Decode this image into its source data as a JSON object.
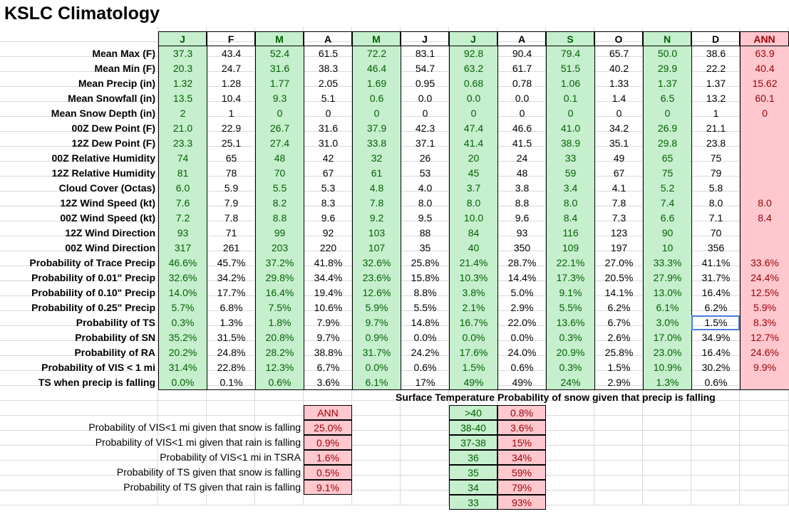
{
  "title": "KSLC Climatology",
  "months": [
    "J",
    "F",
    "M",
    "A",
    "M",
    "J",
    "J",
    "A",
    "S",
    "O",
    "N",
    "D"
  ],
  "annual_label": "ANN",
  "rows": [
    {
      "label": "Mean Max (F)",
      "values": [
        "37.3",
        "43.4",
        "52.4",
        "61.5",
        "72.2",
        "83.1",
        "92.8",
        "90.4",
        "79.4",
        "65.7",
        "50.0",
        "38.6"
      ],
      "ann": "63.9"
    },
    {
      "label": "Mean Min (F)",
      "values": [
        "20.3",
        "24.7",
        "31.6",
        "38.3",
        "46.4",
        "54.7",
        "63.2",
        "61.7",
        "51.5",
        "40.2",
        "29.9",
        "22.2"
      ],
      "ann": "40.4"
    },
    {
      "label": "Mean Precip (in)",
      "values": [
        "1.32",
        "1.28",
        "1.77",
        "2.05",
        "1.69",
        "0.95",
        "0.68",
        "0.78",
        "1.06",
        "1.33",
        "1.37",
        "1.37"
      ],
      "ann": "15.62"
    },
    {
      "label": "Mean Snowfall (in)",
      "values": [
        "13.5",
        "10.4",
        "9.3",
        "5.1",
        "0.6",
        "0.0",
        "0.0",
        "0.0",
        "0.1",
        "1.4",
        "6.5",
        "13.2"
      ],
      "ann": "60.1"
    },
    {
      "label": "Mean Snow Depth (in)",
      "values": [
        "2",
        "1",
        "0",
        "0",
        "0",
        "0",
        "0",
        "0",
        "0",
        "0",
        "0",
        "1"
      ],
      "ann": "0"
    },
    {
      "label": "00Z Dew Point (F)",
      "values": [
        "21.0",
        "22.9",
        "26.7",
        "31.6",
        "37.9",
        "42.3",
        "47.4",
        "46.6",
        "41.0",
        "34.2",
        "26.9",
        "21.1"
      ],
      "ann": ""
    },
    {
      "label": "12Z Dew Point (F)",
      "values": [
        "23.3",
        "25.1",
        "27.4",
        "31.0",
        "33.8",
        "37.1",
        "41.4",
        "41.5",
        "38.9",
        "35.1",
        "29.8",
        "23.8"
      ],
      "ann": ""
    },
    {
      "label": "00Z Relative Humidity",
      "values": [
        "74",
        "65",
        "48",
        "42",
        "32",
        "26",
        "20",
        "24",
        "33",
        "49",
        "65",
        "75"
      ],
      "ann": ""
    },
    {
      "label": "12Z Relative Humidity",
      "values": [
        "81",
        "78",
        "70",
        "67",
        "61",
        "53",
        "45",
        "48",
        "59",
        "67",
        "75",
        "79"
      ],
      "ann": ""
    },
    {
      "label": "Cloud Cover (Octas)",
      "values": [
        "6.0",
        "5.9",
        "5.5",
        "5.3",
        "4.8",
        "4.0",
        "3.7",
        "3.8",
        "3.4",
        "4.1",
        "5.2",
        "5.8"
      ],
      "ann": ""
    },
    {
      "label": "12Z Wind Speed (kt)",
      "values": [
        "7.6",
        "7.9",
        "8.2",
        "8.3",
        "7.8",
        "8.0",
        "8.0",
        "8.8",
        "8.0",
        "7.8",
        "7.4",
        "8.0"
      ],
      "ann": "8.0"
    },
    {
      "label": "00Z Wind Speed (kt)",
      "values": [
        "7.2",
        "7.8",
        "8.8",
        "9.6",
        "9.2",
        "9.5",
        "10.0",
        "9.6",
        "8.4",
        "7.3",
        "6.6",
        "7.1"
      ],
      "ann": "8.4"
    },
    {
      "label": "12Z Wind Direction",
      "values": [
        "93",
        "71",
        "99",
        "92",
        "103",
        "88",
        "84",
        "93",
        "116",
        "123",
        "90",
        "70"
      ],
      "ann": ""
    },
    {
      "label": "00Z Wind Direction",
      "values": [
        "317",
        "261",
        "203",
        "220",
        "107",
        "35",
        "40",
        "350",
        "109",
        "197",
        "10",
        "356"
      ],
      "ann": ""
    },
    {
      "label": "Probability of Trace Precip",
      "values": [
        "46.6%",
        "45.7%",
        "37.2%",
        "41.8%",
        "32.6%",
        "25.8%",
        "21.4%",
        "28.7%",
        "22.1%",
        "27.0%",
        "33.3%",
        "41.1%"
      ],
      "ann": "33.6%"
    },
    {
      "label": "Probability of 0.01\" Precip",
      "values": [
        "32.6%",
        "34.2%",
        "29.8%",
        "34.4%",
        "23.6%",
        "15.8%",
        "10.3%",
        "14.4%",
        "17.3%",
        "20.5%",
        "27.9%",
        "31.7%"
      ],
      "ann": "24.4%"
    },
    {
      "label": "Probability of 0.10\" Precip",
      "values": [
        "14.0%",
        "17.7%",
        "16.4%",
        "19.4%",
        "12.6%",
        "8.8%",
        "3.8%",
        "5.0%",
        "9.1%",
        "14.1%",
        "13.0%",
        "16.4%"
      ],
      "ann": "12.5%"
    },
    {
      "label": "Probability of 0.25\" Precip",
      "values": [
        "5.7%",
        "6.8%",
        "7.5%",
        "10.6%",
        "5.9%",
        "5.5%",
        "2.1%",
        "2.9%",
        "5.5%",
        "6.2%",
        "6.1%",
        "6.2%"
      ],
      "ann": "5.9%"
    },
    {
      "label": "Probability of TS",
      "values": [
        "0.3%",
        "1.3%",
        "1.8%",
        "7.9%",
        "9.7%",
        "14.8%",
        "16.7%",
        "22.0%",
        "13.6%",
        "6.7%",
        "3.0%",
        "1.5%"
      ],
      "ann": "8.3%"
    },
    {
      "label": "Probability of SN",
      "values": [
        "35.2%",
        "31.5%",
        "20.8%",
        "9.7%",
        "0.9%",
        "0.0%",
        "0.0%",
        "0.0%",
        "0.3%",
        "2.6%",
        "17.0%",
        "34.9%"
      ],
      "ann": "12.7%"
    },
    {
      "label": "Probability of RA",
      "values": [
        "20.2%",
        "24.8%",
        "28.2%",
        "38.8%",
        "31.7%",
        "24.2%",
        "17.6%",
        "24.0%",
        "20.9%",
        "25.8%",
        "23.0%",
        "16.4%"
      ],
      "ann": "24.6%"
    },
    {
      "label": "Probability of VIS < 1 mi",
      "values": [
        "31.4%",
        "22.8%",
        "12.3%",
        "6.7%",
        "0.0%",
        "0.6%",
        "1.5%",
        "0.6%",
        "0.3%",
        "1.5%",
        "10.9%",
        "30.2%"
      ],
      "ann": "9.9%"
    },
    {
      "label": "TS when precip is falling",
      "values": [
        "0.0%",
        "0.1%",
        "0.6%",
        "3.6%",
        "6.1%",
        "17%",
        "49%",
        "49%",
        "24%",
        "2.9%",
        "1.3%",
        "0.6%"
      ],
      "ann": ""
    }
  ],
  "cond": {
    "header": "ANN",
    "rows": [
      {
        "label": "Probability of VIS<1 mi given that snow is falling",
        "value": "25.0%"
      },
      {
        "label": "Probability of VIS<1 mi given that rain is falling",
        "value": "0.9%"
      },
      {
        "label": "Probability of VIS<1 mi in TSRA",
        "value": "1.6%"
      },
      {
        "label": "Probability of TS given that snow is falling",
        "value": "0.5%"
      },
      {
        "label": "Probability of TS given that rain is falling",
        "value": "9.1%"
      }
    ]
  },
  "snow": {
    "temp_header": "Surface Temperature",
    "prob_header": "Probability of snow given that precip is falling",
    "rows": [
      {
        "temp": ">40",
        "prob": "0.8%"
      },
      {
        "temp": "38-40",
        "prob": "3.6%"
      },
      {
        "temp": "37-38",
        "prob": "15%"
      },
      {
        "temp": "36",
        "prob": "34%"
      },
      {
        "temp": "35",
        "prob": "59%"
      },
      {
        "temp": "34",
        "prob": "79%"
      },
      {
        "temp": "33",
        "prob": "93%"
      }
    ]
  },
  "colors": {
    "green_fill": "#c6efce",
    "green_text": "#006100",
    "red_fill": "#ffc7ce",
    "red_text": "#9c0006",
    "selection": "#4a7edb"
  },
  "selected_cell": {
    "row_label": "Probability of TS",
    "month": "D",
    "value": "1.5%"
  }
}
